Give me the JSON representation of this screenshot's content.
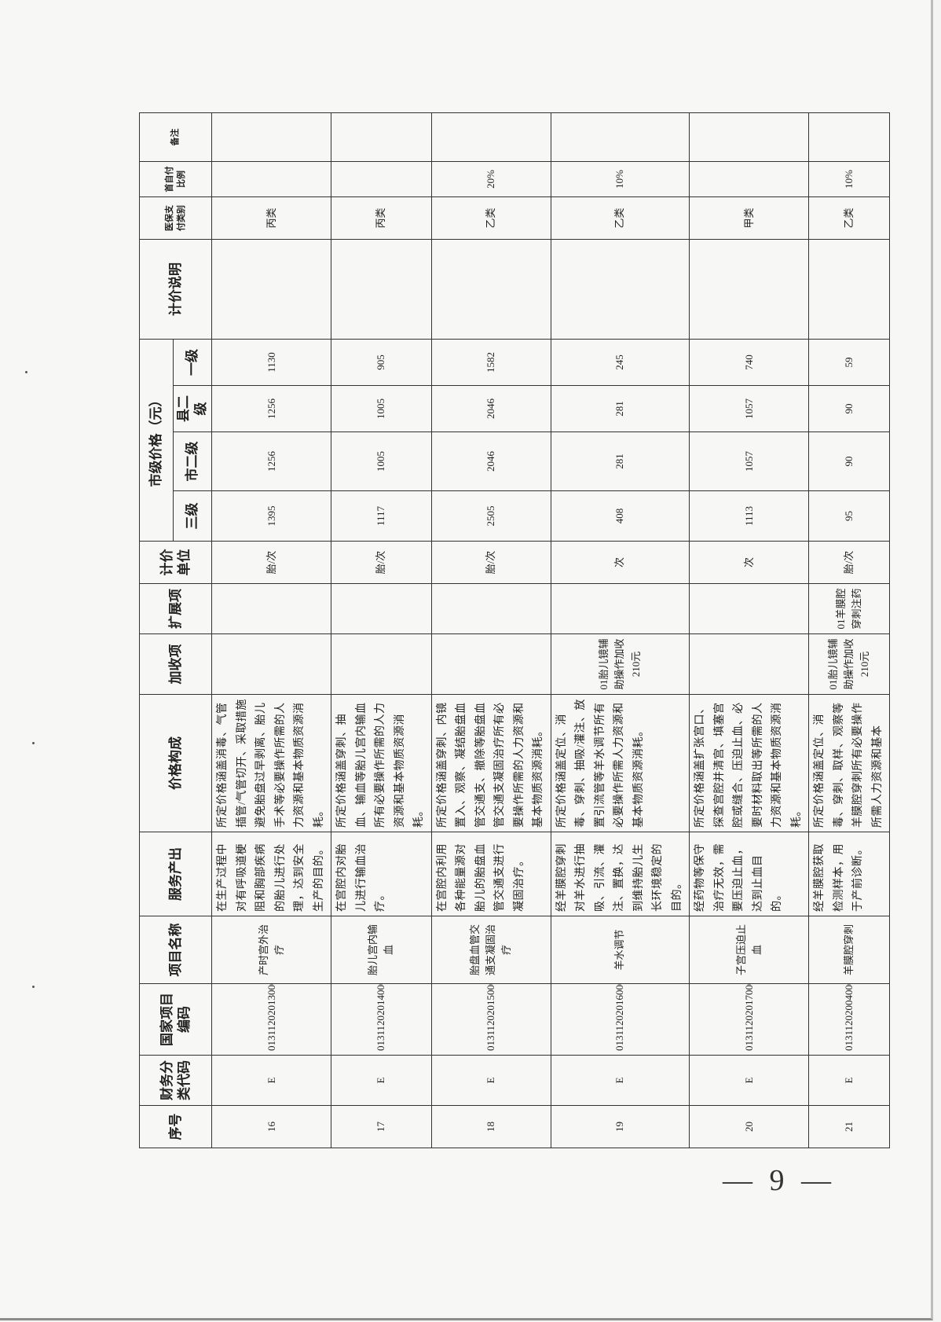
{
  "table": {
    "headers": {
      "seq": "序号",
      "finance_code": "财务分类代码",
      "national_code": "国家项目编码",
      "name": "项目名称",
      "output": "服务产出",
      "price_composition": "价格构成",
      "surcharge": "加收项",
      "extension": "扩展项",
      "unit": "计价单位",
      "city_price_group": "市级价格（元）",
      "level3": "三级",
      "city_level2": "市二级",
      "county_level2": "县二级",
      "level1": "一级",
      "pricing_note": "计价说明",
      "insurance_category": "医保支付类别",
      "self_pay_ratio": "首自付比例",
      "remarks": "备注"
    },
    "rows": [
      {
        "seq": "16",
        "finance_code": "E",
        "national_code": "013112020130000",
        "name": "产时宫外治疗",
        "output": "在生产过程中对有呼吸道梗阻和胸部疾病的胎儿进行处理，达到安全生产的目的。",
        "price_composition": "所定价格涵盖消毒、气管插管/气管切开、采取措施避免胎盘过早剥离、胎儿手术等必要操作所需的人力资源和基本物质资源消耗。",
        "surcharge": "",
        "extension": "",
        "unit": "胎/次",
        "level3": "1395",
        "city_level2": "1256",
        "county_level2": "1256",
        "level1": "1130",
        "pricing_note": "",
        "insurance_category": "丙类",
        "self_pay_ratio": "",
        "remarks": ""
      },
      {
        "seq": "17",
        "finance_code": "E",
        "national_code": "013112020140000",
        "name": "胎儿宫内输血",
        "output": "在宫腔内对胎儿进行输血治疗。",
        "price_composition": "所定价格涵盖穿刺、抽血、输血等胎儿宫内输血所有必要操作所需的人力资源和基本物质资源消耗。",
        "surcharge": "",
        "extension": "",
        "unit": "胎/次",
        "level3": "1117",
        "city_level2": "1005",
        "county_level2": "1005",
        "level1": "905",
        "pricing_note": "",
        "insurance_category": "丙类",
        "self_pay_ratio": "",
        "remarks": ""
      },
      {
        "seq": "18",
        "finance_code": "E",
        "national_code": "013112020150000",
        "name": "胎盘血管交通支凝固治疗",
        "output": "在宫腔内利用各种能量源对胎儿的胎盘血管交通支进行凝固治疗。",
        "price_composition": "所定价格涵盖穿刺、内镜置入、观察、凝结胎盘血管交通支、撤除等胎盘血管交通支凝固治疗所有必要操作所需的人力资源和基本物质资源消耗。",
        "surcharge": "",
        "extension": "",
        "unit": "胎/次",
        "level3": "2505",
        "city_level2": "2046",
        "county_level2": "2046",
        "level1": "1582",
        "pricing_note": "",
        "insurance_category": "乙类",
        "self_pay_ratio": "20%",
        "remarks": ""
      },
      {
        "seq": "19",
        "finance_code": "E",
        "national_code": "013112020160000",
        "name": "羊水调节",
        "output": "经羊膜腔穿刺对羊水进行抽吸、引流、灌注、置换，达到维持胎儿生长环境稳定的目的。",
        "price_composition": "所定价格涵盖定位、消毒、穿刺、抽吸/灌注、放置引流管等羊水调节所有必要操作所需人力资源和基本物质资源消耗。",
        "surcharge": "01胎儿镜辅助操作加收210元",
        "extension": "",
        "unit": "次",
        "level3": "408",
        "city_level2": "281",
        "county_level2": "281",
        "level1": "245",
        "pricing_note": "",
        "insurance_category": "乙类",
        "self_pay_ratio": "10%",
        "remarks": ""
      },
      {
        "seq": "20",
        "finance_code": "E",
        "national_code": "013112020170000",
        "name": "子宫压迫止血",
        "output": "经药物等保守治疗无效，需要压迫止血，达到止血目的。",
        "price_composition": "所定价格涵盖扩张宫口、探查宫腔并清宫、填塞宫腔或缝合、压迫止血、必要时材料取出等所需的人力资源和基本物质资源消耗。",
        "surcharge": "",
        "extension": "",
        "unit": "次",
        "level3": "1113",
        "city_level2": "1057",
        "county_level2": "1057",
        "level1": "740",
        "pricing_note": "",
        "insurance_category": "甲类",
        "self_pay_ratio": "",
        "remarks": ""
      },
      {
        "seq": "21",
        "finance_code": "E",
        "national_code": "013112020040000",
        "name": "羊膜腔穿刺",
        "output": "经羊膜腔获取检测样本，用于产前诊断。",
        "price_composition": "所定价格涵盖定位、消毒、穿刺、取样、观察等羊膜腔穿刺所有必要操作所需人力资源和基本",
        "surcharge": "01胎儿镜辅助操作加收210元",
        "extension": "01羊膜腔穿刺注药",
        "unit": "胎/次",
        "level3": "95",
        "city_level2": "90",
        "county_level2": "90",
        "level1": "59",
        "pricing_note": "",
        "insurance_category": "乙类",
        "self_pay_ratio": "10%",
        "remarks": ""
      }
    ]
  },
  "page_number": "— 9 —"
}
